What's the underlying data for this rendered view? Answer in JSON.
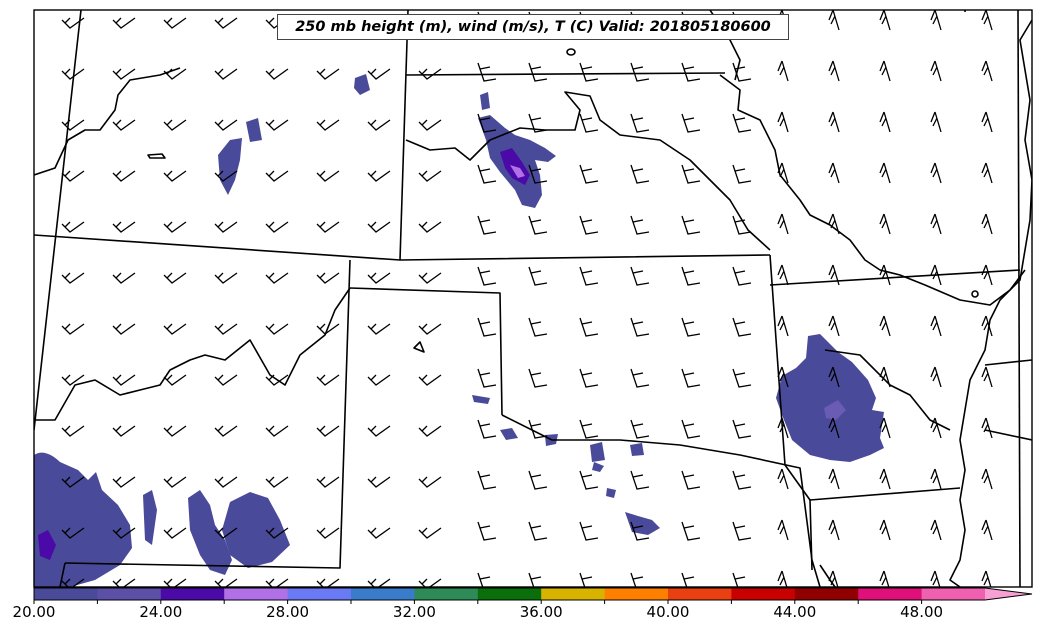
{
  "title": "250 mb height (m), wind (m/s), T (C) Valid: 201805180600",
  "colorbar": {
    "tick_labels": [
      "20.00",
      "24.00",
      "28.00",
      "32.00",
      "36.00",
      "40.00",
      "44.00",
      "48.00"
    ],
    "colors": [
      "#4a4a9a",
      "#5b4fa6",
      "#4b0aa8",
      "#b070e8",
      "#6a7af5",
      "#3a7ccc",
      "#2e8b57",
      "#0a6e0a",
      "#d8b400",
      "#ff8000",
      "#e84010",
      "#c80000",
      "#900000",
      "#e0107a",
      "#f060b0",
      "#f7a0d4"
    ]
  },
  "colors": {
    "shading_main": "#4a4a9a",
    "shading_dark": "#4b0aa8",
    "shading_light": "#8a60d8",
    "boundary": "#000000"
  }
}
